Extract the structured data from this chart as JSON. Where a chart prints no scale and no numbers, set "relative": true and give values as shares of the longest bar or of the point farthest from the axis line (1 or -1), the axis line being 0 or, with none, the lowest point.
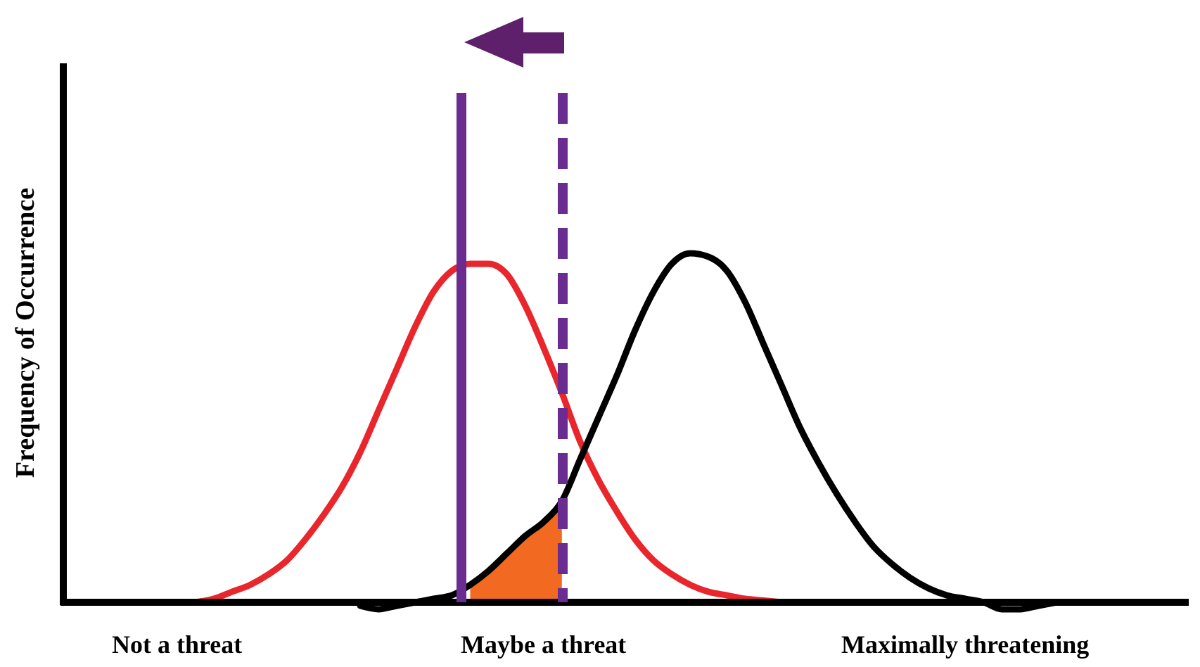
{
  "chart_data": {
    "type": "line",
    "relative": true,
    "ylabel": "Frequency of Occurrence",
    "categories": [
      null,
      null,
      null,
      null,
      null,
      null,
      "Not a threat",
      null,
      null,
      null,
      null,
      null,
      null,
      null,
      null,
      null,
      null,
      null,
      null,
      null,
      null,
      null,
      null,
      null,
      null,
      null,
      "Maybe a threat",
      null,
      null,
      null,
      null,
      null,
      null,
      null,
      null,
      null,
      null,
      null,
      null,
      null,
      null,
      null,
      null,
      null,
      null,
      null,
      null,
      null,
      null,
      "Maximally threatening",
      null,
      null,
      null,
      null,
      null,
      null,
      null,
      null,
      null,
      null,
      null
    ],
    "series": [
      {
        "color": "#e8262b",
        "values": [
          null,
          null,
          null,
          null,
          null,
          null,
          null,
          0,
          0.01,
          0.03,
          0.05,
          0.08,
          0.12,
          0.18,
          0.25,
          0.33,
          0.43,
          0.55,
          0.67,
          0.79,
          0.89,
          0.95,
          0.97,
          0.97,
          0.94,
          0.85,
          0.73,
          0.6,
          0.46,
          0.35,
          0.26,
          0.18,
          0.12,
          0.08,
          0.05,
          0.03,
          0.02,
          0.01,
          0.005,
          0,
          null,
          null,
          null,
          null,
          null,
          null,
          null,
          null,
          null,
          null,
          null,
          null,
          null,
          null,
          null,
          null,
          null,
          null,
          null,
          null,
          null
        ]
      },
      {
        "color": "#000000",
        "values": [
          null,
          null,
          null,
          null,
          null,
          null,
          null,
          null,
          null,
          null,
          null,
          null,
          null,
          null,
          null,
          null,
          -0.01,
          -0.02,
          -0.01,
          0,
          0.01,
          0.02,
          0.05,
          0.09,
          0.14,
          0.19,
          0.23,
          0.29,
          0.41,
          0.53,
          0.65,
          0.78,
          0.89,
          0.97,
          1,
          0.99,
          0.95,
          0.86,
          0.74,
          0.62,
          0.5,
          0.4,
          0.31,
          0.23,
          0.16,
          0.11,
          0.07,
          0.04,
          0.02,
          0.01,
          0,
          -0.02,
          -0.02,
          -0.01,
          0,
          null,
          null,
          null,
          null,
          null,
          null
        ]
      },
      {
        "type": "area",
        "color": "#f26a22",
        "values": [
          null,
          null,
          null,
          null,
          null,
          null,
          null,
          null,
          null,
          null,
          null,
          null,
          null,
          null,
          null,
          null,
          null,
          null,
          null,
          null,
          null,
          null,
          0.05,
          0.09,
          0.14,
          0.19,
          0.23,
          0.29,
          null,
          null,
          null,
          null,
          null,
          null,
          null,
          null,
          null,
          null,
          null,
          null,
          null,
          null,
          null,
          null,
          null,
          null,
          null,
          null,
          null,
          null,
          null,
          null,
          null,
          null,
          null,
          null,
          null,
          null,
          null,
          null,
          null
        ]
      }
    ],
    "grid": false
  }
}
